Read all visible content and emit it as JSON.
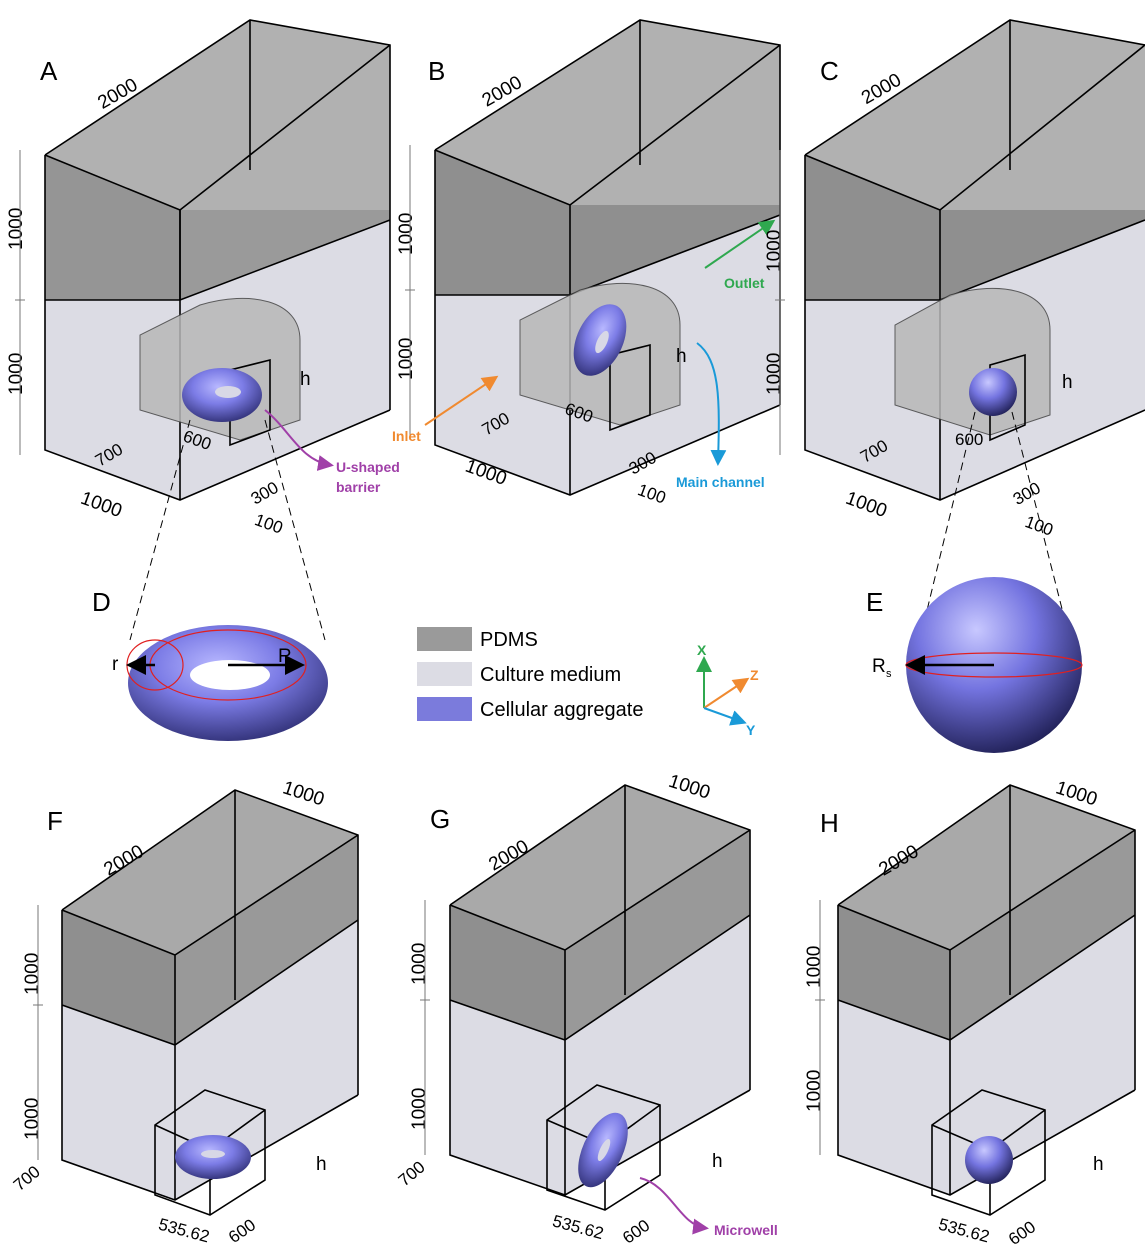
{
  "panels": {
    "A": {
      "label": "A",
      "top_len": "2000",
      "h_upper": "1000",
      "h_lower": "1000",
      "w_bottom": "1000",
      "inner_700": "700",
      "inner_600": "600",
      "dim_300": "300",
      "dim_100": "100",
      "h": "h"
    },
    "B": {
      "label": "B",
      "top_len": "2000",
      "h_upper": "1000",
      "h_lower": "1000",
      "w_bottom": "1000",
      "inner_700": "700",
      "inner_600": "600",
      "dim_300": "300",
      "dim_100": "100",
      "h": "h"
    },
    "C": {
      "label": "C",
      "top_len": "2000",
      "h_upper": "1000",
      "h_lower": "1000",
      "w_bottom": "1000",
      "inner_700": "700",
      "inner_600": "600",
      "dim_300": "300",
      "dim_100": "100",
      "h": "h"
    },
    "D": {
      "label": "D",
      "r": "r",
      "R": "R"
    },
    "E": {
      "label": "E",
      "Rs_main": "R",
      "Rs_sub": "s"
    },
    "F": {
      "label": "F",
      "top_len": "2000",
      "top_w": "1000",
      "h_upper": "1000",
      "h_lower": "1000",
      "d700": "700",
      "d535": "535.62",
      "d600": "600",
      "h": "h"
    },
    "G": {
      "label": "G",
      "top_len": "2000",
      "top_w": "1000",
      "h_upper": "1000",
      "h_lower": "1000",
      "d700": "700",
      "d535": "535.62",
      "d600": "600",
      "h": "h"
    },
    "H": {
      "label": "H",
      "top_len": "2000",
      "top_w": "1000",
      "h_upper": "1000",
      "h_lower": "1000",
      "d535": "535.62",
      "d600": "600",
      "h": "h"
    }
  },
  "callouts": {
    "u_barrier_1": "U-shaped",
    "u_barrier_2": "barrier",
    "inlet": "Inlet",
    "outlet": "Outlet",
    "main_channel": "Main channel",
    "microwell": "Microwell"
  },
  "legend": {
    "pdms": "PDMS",
    "medium": "Culture medium",
    "aggregate": "Cellular aggregate"
  },
  "axes": {
    "x": "X",
    "y": "Y",
    "z": "Z"
  },
  "colors": {
    "pdms": "#9a9a9a",
    "medium": "#dcdce4",
    "aggregate": "#7b7bdc",
    "callout_purple": "#a040a8",
    "inlet_orange": "#f08a30",
    "outlet_green": "#2fa84f",
    "main_blue": "#1a9ad8"
  }
}
